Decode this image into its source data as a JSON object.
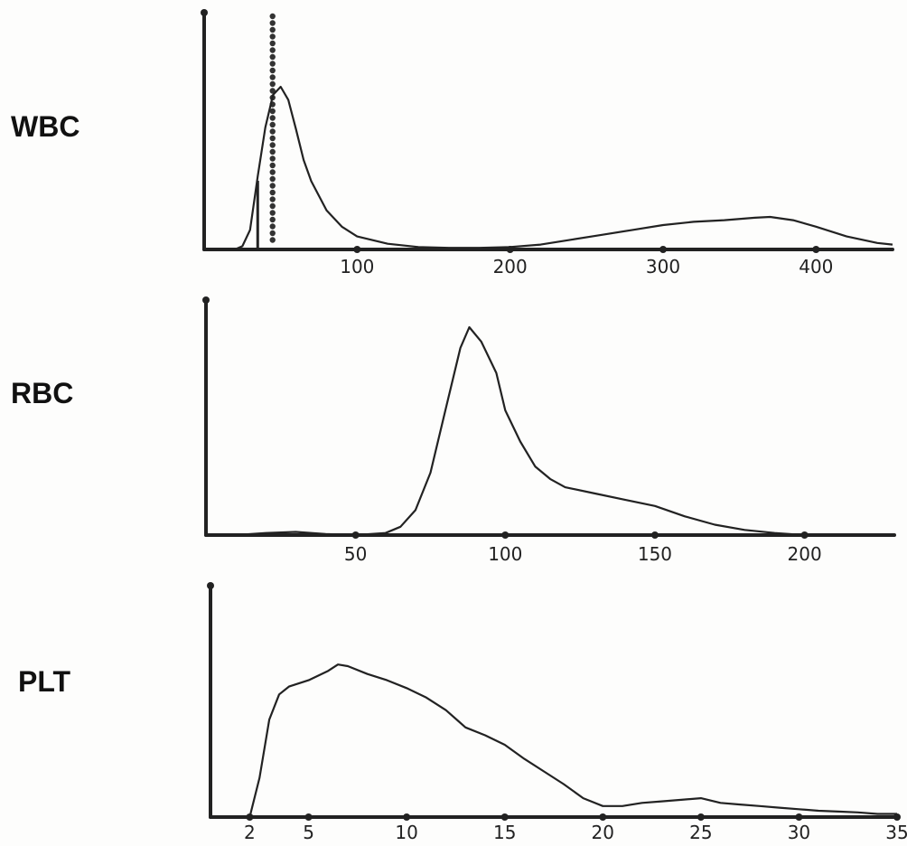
{
  "chart_data": [
    {
      "type": "line",
      "label": "WBC",
      "xlim": [
        0,
        450
      ],
      "x_ticks": [
        100,
        200,
        300,
        400
      ],
      "tick_labels": [
        "100",
        "200",
        "300",
        "400"
      ],
      "points": [
        [
          0,
          0
        ],
        [
          20,
          0
        ],
        [
          25,
          0.02
        ],
        [
          30,
          0.12
        ],
        [
          35,
          0.45
        ],
        [
          40,
          0.75
        ],
        [
          45,
          0.95
        ],
        [
          50,
          1.0
        ],
        [
          55,
          0.92
        ],
        [
          60,
          0.74
        ],
        [
          65,
          0.55
        ],
        [
          70,
          0.42
        ],
        [
          80,
          0.24
        ],
        [
          90,
          0.14
        ],
        [
          100,
          0.08
        ],
        [
          120,
          0.035
        ],
        [
          140,
          0.015
        ],
        [
          160,
          0.01
        ],
        [
          180,
          0.01
        ],
        [
          200,
          0.015
        ],
        [
          220,
          0.03
        ],
        [
          240,
          0.06
        ],
        [
          260,
          0.09
        ],
        [
          280,
          0.12
        ],
        [
          300,
          0.15
        ],
        [
          320,
          0.17
        ],
        [
          340,
          0.18
        ],
        [
          360,
          0.195
        ],
        [
          370,
          0.2
        ],
        [
          385,
          0.18
        ],
        [
          400,
          0.14
        ],
        [
          420,
          0.08
        ],
        [
          440,
          0.04
        ],
        [
          450,
          0.03
        ]
      ],
      "markers": {
        "lower_discriminator": 35,
        "dotted_discriminator": 40
      }
    },
    {
      "type": "line",
      "label": "RBC",
      "xlim": [
        0,
        230
      ],
      "x_ticks": [
        50,
        100,
        150,
        200
      ],
      "tick_labels": [
        "50",
        "100",
        "150",
        "200"
      ],
      "points": [
        [
          0,
          0
        ],
        [
          10,
          0
        ],
        [
          20,
          0.01
        ],
        [
          30,
          0.015
        ],
        [
          40,
          0.005
        ],
        [
          50,
          0.0
        ],
        [
          60,
          0.01
        ],
        [
          65,
          0.04
        ],
        [
          70,
          0.12
        ],
        [
          75,
          0.3
        ],
        [
          80,
          0.6
        ],
        [
          85,
          0.9
        ],
        [
          88,
          1.0
        ],
        [
          92,
          0.93
        ],
        [
          97,
          0.78
        ],
        [
          100,
          0.6
        ],
        [
          105,
          0.45
        ],
        [
          110,
          0.33
        ],
        [
          115,
          0.27
        ],
        [
          120,
          0.23
        ],
        [
          130,
          0.2
        ],
        [
          140,
          0.17
        ],
        [
          150,
          0.14
        ],
        [
          160,
          0.09
        ],
        [
          170,
          0.05
        ],
        [
          180,
          0.025
        ],
        [
          190,
          0.01
        ],
        [
          200,
          0.0
        ],
        [
          230,
          0.0
        ]
      ]
    },
    {
      "type": "line",
      "label": "PLT",
      "xlim": [
        0,
        35
      ],
      "x_ticks": [
        2,
        5,
        10,
        15,
        20,
        25,
        30,
        35
      ],
      "tick_labels": [
        "2",
        "5",
        "10",
        "15",
        "20",
        "25",
        "30",
        "35"
      ],
      "points": [
        [
          2,
          0
        ],
        [
          2.5,
          0.25
        ],
        [
          3,
          0.62
        ],
        [
          3.5,
          0.78
        ],
        [
          4,
          0.83
        ],
        [
          5,
          0.87
        ],
        [
          6,
          0.93
        ],
        [
          6.5,
          0.97
        ],
        [
          7,
          0.96
        ],
        [
          8,
          0.91
        ],
        [
          9,
          0.87
        ],
        [
          10,
          0.82
        ],
        [
          11,
          0.76
        ],
        [
          12,
          0.68
        ],
        [
          13,
          0.57
        ],
        [
          14,
          0.52
        ],
        [
          15,
          0.46
        ],
        [
          16,
          0.37
        ],
        [
          17,
          0.29
        ],
        [
          18,
          0.21
        ],
        [
          19,
          0.12
        ],
        [
          20,
          0.07
        ],
        [
          21,
          0.07
        ],
        [
          22,
          0.09
        ],
        [
          23,
          0.1
        ],
        [
          24,
          0.11
        ],
        [
          25,
          0.12
        ],
        [
          26,
          0.09
        ],
        [
          27,
          0.08
        ],
        [
          28,
          0.07
        ],
        [
          29,
          0.06
        ],
        [
          30,
          0.05
        ],
        [
          31,
          0.04
        ],
        [
          32,
          0.035
        ],
        [
          33,
          0.03
        ],
        [
          34,
          0.02
        ],
        [
          35,
          0.02
        ]
      ]
    }
  ]
}
